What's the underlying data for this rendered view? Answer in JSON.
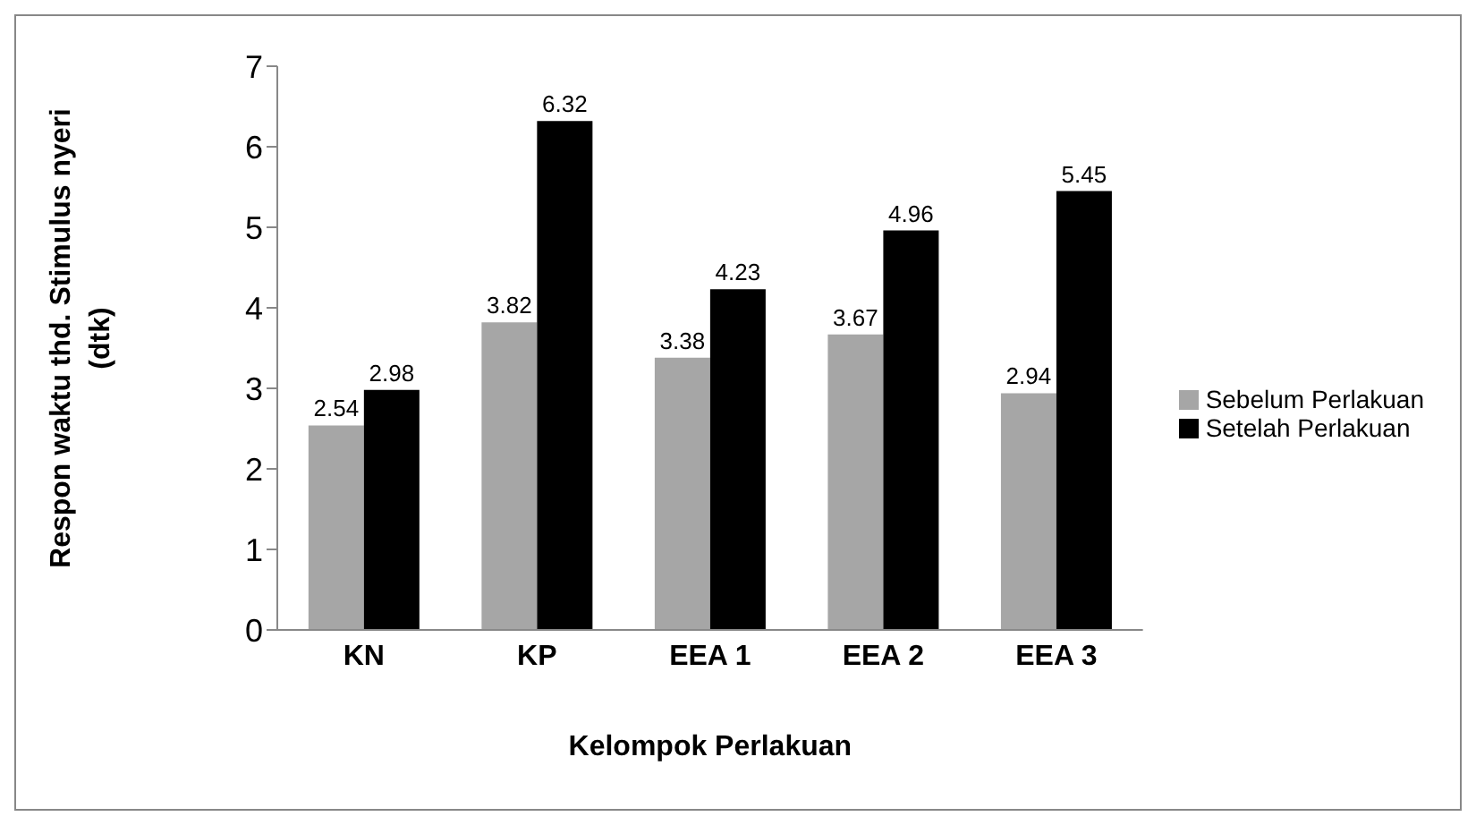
{
  "chart_data": {
    "type": "bar",
    "xlabel": "Kelompok Perlakuan",
    "ylabel": "Respon waktu thd. Stimulus nyeri (dtk)",
    "categories": [
      "KN",
      "KP",
      "EEA 1",
      "EEA 2",
      "EEA 3"
    ],
    "series": [
      {
        "name": "Sebelum Perlakuan",
        "color": "#a6a6a6",
        "values": [
          2.54,
          3.82,
          3.38,
          3.67,
          2.94
        ]
      },
      {
        "name": "Setelah Perlakuan",
        "color": "#000000",
        "values": [
          2.98,
          6.32,
          4.23,
          4.96,
          5.45
        ]
      }
    ],
    "ylim": [
      0,
      7
    ],
    "yticks": [
      0,
      1,
      2,
      3,
      4,
      5,
      6,
      7
    ],
    "grid": false,
    "legend": "right",
    "data_labels": true
  }
}
